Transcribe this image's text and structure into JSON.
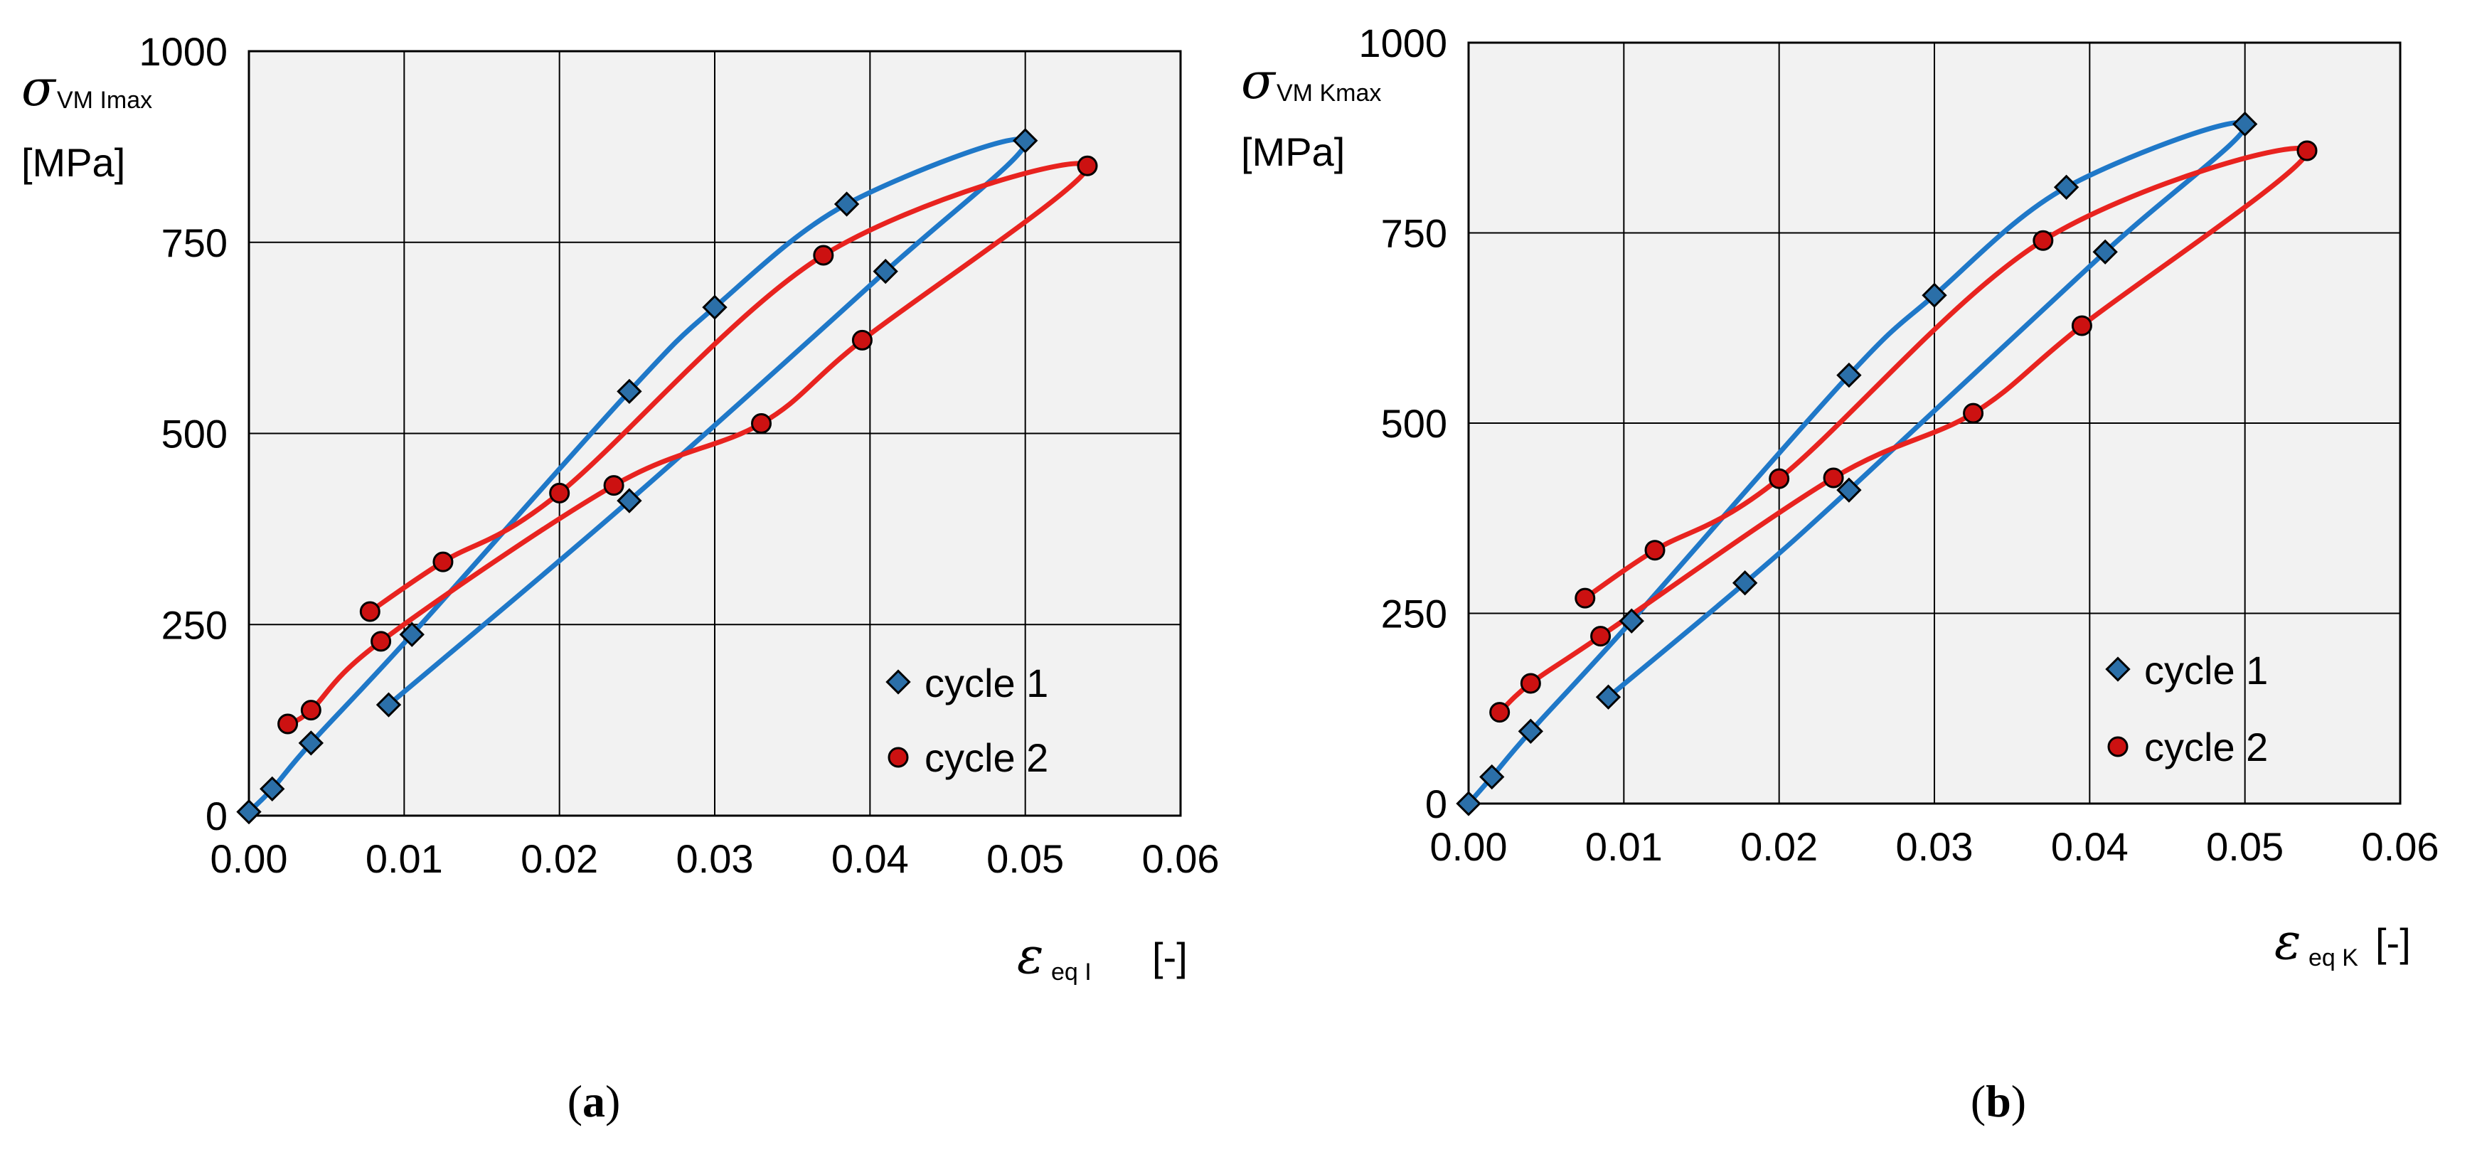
{
  "colors": {
    "cycle1": "#1f78c8",
    "cycle2": "#e8231f",
    "marker_cycle1": "#2b6fa8",
    "marker_cycle2": "#cc1111",
    "plot_bg": "#f2f2f2",
    "grid": "#000000"
  },
  "chart_data": [
    {
      "type": "line",
      "panel": "a",
      "caption_letter": "a",
      "y_symbol": "σ",
      "y_subscript": "VM Imax",
      "y_unit": "[MPa]",
      "x_symbol": "ε",
      "x_subscript": "eq I",
      "x_unit": "[-]",
      "xlim": [
        0,
        0.06
      ],
      "ylim": [
        0,
        1000
      ],
      "xticks": [
        "0.00",
        "0.01",
        "0.02",
        "0.03",
        "0.04",
        "0.05",
        "0.06"
      ],
      "yticks": [
        "0",
        "250",
        "500",
        "750",
        "1000"
      ],
      "grid": true,
      "legend_position": "bottom-right",
      "series": [
        {
          "name": "cycle 1",
          "marker": "diamond",
          "points": [
            [
              0.0,
              5
            ],
            [
              0.0015,
              35
            ],
            [
              0.004,
              95
            ],
            [
              0.0105,
              237
            ],
            [
              0.0245,
              555
            ],
            [
              0.03,
              665
            ],
            [
              0.0385,
              800
            ],
            [
              0.05,
              883
            ],
            [
              0.041,
              712
            ],
            [
              0.0245,
              412
            ],
            [
              0.009,
              145
            ]
          ]
        },
        {
          "name": "cycle 2",
          "marker": "circle",
          "points": [
            [
              0.0025,
              120
            ],
            [
              0.004,
              138
            ],
            [
              0.0085,
              228
            ],
            [
              0.0235,
              432
            ],
            [
              0.033,
              513
            ],
            [
              0.0395,
              622
            ],
            [
              0.054,
              850
            ],
            [
              0.037,
              733
            ],
            [
              0.02,
              422
            ],
            [
              0.0125,
              332
            ],
            [
              0.0078,
              267
            ]
          ]
        }
      ]
    },
    {
      "type": "line",
      "panel": "b",
      "caption_letter": "b",
      "y_symbol": "σ",
      "y_subscript": "VM Kmax",
      "y_unit": "[MPa]",
      "x_symbol": "ε",
      "x_subscript": "eq K",
      "x_unit": "[-]",
      "xlim": [
        0,
        0.06
      ],
      "ylim": [
        0,
        1000
      ],
      "xticks": [
        "0.00",
        "0.01",
        "0.02",
        "0.03",
        "0.04",
        "0.05",
        "0.06"
      ],
      "yticks": [
        "0",
        "250",
        "500",
        "750",
        "1000"
      ],
      "grid": true,
      "legend_position": "bottom-right",
      "series": [
        {
          "name": "cycle 1",
          "marker": "diamond",
          "points": [
            [
              0.0,
              0
            ],
            [
              0.0015,
              35
            ],
            [
              0.004,
              95
            ],
            [
              0.0105,
              240
            ],
            [
              0.0245,
              563
            ],
            [
              0.03,
              668
            ],
            [
              0.0385,
              810
            ],
            [
              0.05,
              893
            ],
            [
              0.041,
              725
            ],
            [
              0.0245,
              412
            ],
            [
              0.0178,
              290
            ],
            [
              0.009,
              140
            ]
          ]
        },
        {
          "name": "cycle 2",
          "marker": "circle",
          "points": [
            [
              0.002,
              120
            ],
            [
              0.004,
              158
            ],
            [
              0.0085,
              220
            ],
            [
              0.0235,
              428
            ],
            [
              0.0325,
              513
            ],
            [
              0.0395,
              628
            ],
            [
              0.054,
              858
            ],
            [
              0.037,
              740
            ],
            [
              0.02,
              427
            ],
            [
              0.012,
              333
            ],
            [
              0.0075,
              270
            ]
          ]
        }
      ]
    }
  ]
}
